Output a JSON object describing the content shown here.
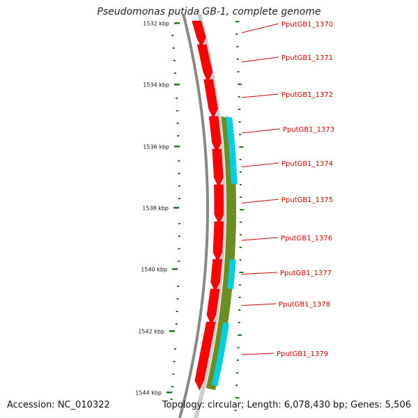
{
  "title": "Pseudomonas putida GB-1, complete genome",
  "footer": {
    "accession": "Accession: NC_010322",
    "summary": "Topology: circular; Length: 6,078,430 bp; Genes: 5,506"
  },
  "scale_labels": [
    "1532 kbp",
    "1534 kbp",
    "1536 kbp",
    "1538 kbp",
    "1540 kbp",
    "1542 kbp",
    "1544 kbp"
  ],
  "genes": [
    {
      "id": "PputGB1_1370",
      "type": "cds"
    },
    {
      "id": "PputGB1_1371",
      "type": "cds"
    },
    {
      "id": "PputGB1_1372",
      "type": "cds"
    },
    {
      "id": "PputGB1_1373",
      "type": "cds"
    },
    {
      "id": "PputGB1_1374",
      "type": "cds"
    },
    {
      "id": "PputGB1_1375",
      "type": "cds"
    },
    {
      "id": "PputGB1_1376",
      "type": "cds"
    },
    {
      "id": "PputGB1_1377",
      "type": "cds"
    },
    {
      "id": "PputGB1_1378",
      "type": "cds"
    },
    {
      "id": "PputGB1_1379",
      "type": "cds"
    }
  ],
  "colors": {
    "cds": "#ff0000",
    "olive": "#6b8e23",
    "cyan": "#00d0e0",
    "label": "#cc0000",
    "tick": "#1a7a1a",
    "backbone": "#888888"
  }
}
